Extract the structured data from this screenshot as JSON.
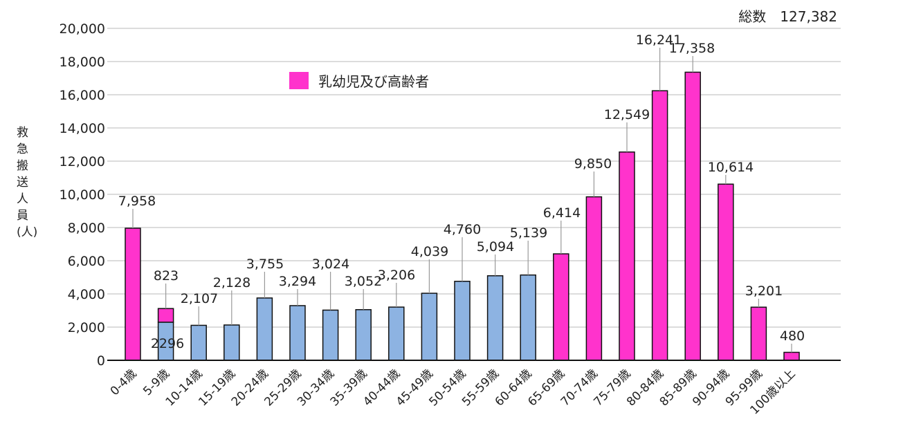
{
  "total": {
    "label": "総数",
    "value": "127,382"
  },
  "chart_data": {
    "type": "bar",
    "ylabel": "救急搬送人員(人)",
    "ylim": [
      0,
      20000
    ],
    "yticks": [
      "0",
      "2,000",
      "4,000",
      "6,000",
      "8,000",
      "10,000",
      "12,000",
      "14,000",
      "16,000",
      "18,000",
      "20,000"
    ],
    "grid": true,
    "legend": {
      "position": "top-left",
      "entries": [
        {
          "name": "乳幼児及び高齢者",
          "color": "#ff33cc"
        }
      ]
    },
    "categories": [
      "0-4歳",
      "5-9歳",
      "10-14歳",
      "15-19歳",
      "20-24歳",
      "25-29歳",
      "30-34歳",
      "35-39歳",
      "40-44歳",
      "45-49歳",
      "50-54歳",
      "55-59歳",
      "60-64歳",
      "65-69歳",
      "70-74歳",
      "75-79歳",
      "80-84歳",
      "85-89歳",
      "90-94歳",
      "95-99歳",
      "100歳以上"
    ],
    "series": [
      {
        "color": "#8db3e2",
        "values": [
          0,
          2296,
          2107,
          2128,
          3755,
          3294,
          3024,
          3052,
          3206,
          4039,
          4760,
          5094,
          5139,
          0,
          0,
          0,
          0,
          0,
          0,
          0,
          0
        ]
      },
      {
        "name": "乳幼児及び高齢者",
        "color": "#ff33cc",
        "values": [
          7958,
          823,
          0,
          0,
          0,
          0,
          0,
          0,
          0,
          0,
          0,
          0,
          0,
          6414,
          9850,
          12549,
          16241,
          17358,
          10614,
          3201,
          480
        ]
      }
    ],
    "data_labels": [
      "7,958",
      "823",
      "2,107",
      "2,128",
      "3,755",
      "3,294",
      "3,024",
      "3,052",
      "3,206",
      "4,039",
      "4,760",
      "5,094",
      "5,139",
      "6,414",
      "9,850",
      "12,549",
      "16,241",
      "17,358",
      "10,614",
      "3,201",
      "480"
    ],
    "extra_label": "2296"
  }
}
